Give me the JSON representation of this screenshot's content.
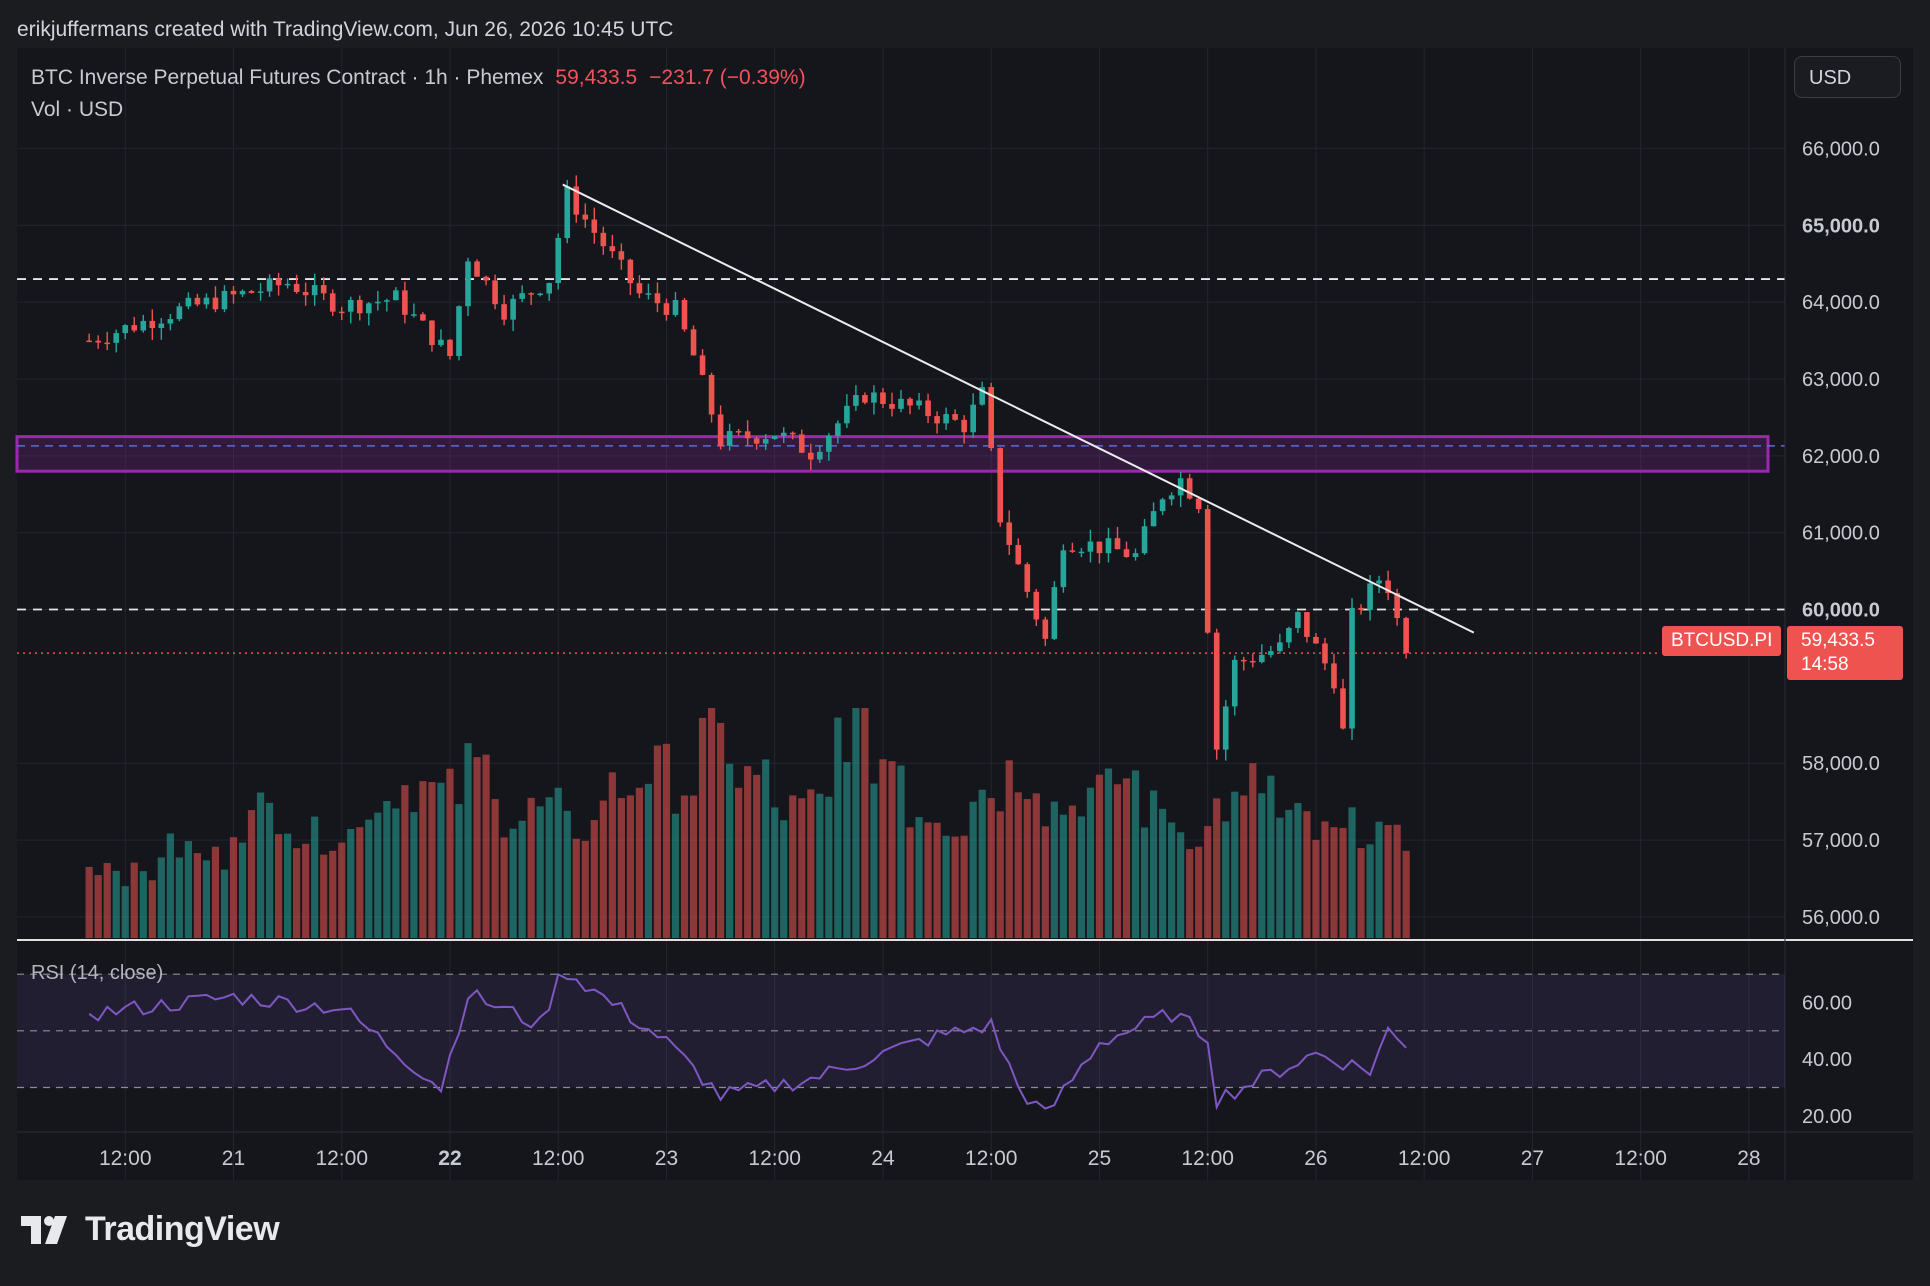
{
  "header": {
    "credit": "erikjuffermans created with TradingView.com, Jun 26, 2026 10:45 UTC"
  },
  "legend": {
    "symbol": "BTC Inverse Perpetual Futures Contract · 1h · Phemex",
    "price": "59,433.5",
    "change": "−231.7 (−0.39%)",
    "volume": "Vol · USD"
  },
  "currency_button": "USD",
  "price_tag": {
    "symbol": "BTCUSD.PI",
    "price": "59,433.5",
    "countdown": "14:58"
  },
  "rsi_label": "RSI (14, close)",
  "brand": "TradingView",
  "colors": {
    "up": "#26a69a",
    "down": "#ef5350",
    "zone": "#9c27b0",
    "rsi": "#7e57c2",
    "background": "#15161c"
  },
  "chart_data": [
    {
      "type": "candlestick",
      "y_axis_ticks": [
        "66,000.0",
        "65,000.0",
        "64,000.0",
        "63,000.0",
        "62,000.0",
        "61,000.0",
        "60,000.0",
        "58,000.0",
        "57,000.0",
        "56,000.0"
      ],
      "y_axis_ticks_bold": [
        "65,000.0",
        "60,000.0"
      ],
      "x_axis_ticks": [
        "12:00",
        "21",
        "12:00",
        "22",
        "12:00",
        "23",
        "12:00",
        "24",
        "12:00",
        "25",
        "12:00",
        "26",
        "12:00",
        "27",
        "12:00",
        "28"
      ],
      "x_axis_ticks_bold": [
        "22"
      ],
      "ylim": [
        55700,
        66500
      ],
      "last_price": 59433.5,
      "horizontal_levels": [
        64300,
        60000
      ],
      "support_zone": {
        "low": 61800,
        "high": 62250,
        "mid": 62130
      },
      "trendline": {
        "from": {
          "time": "Jun 22 12:30",
          "price": 65530
        },
        "to": {
          "time": "Jun 26 17:30",
          "price": 59700
        }
      },
      "close_path": [
        {
          "time": "Jun 20 08:00",
          "close": 63500
        },
        {
          "time": "Jun 20 18:00",
          "close": 63900
        },
        {
          "time": "Jun 21 06:00",
          "close": 64250
        },
        {
          "time": "Jun 21 12:00",
          "close": 63950
        },
        {
          "time": "Jun 21 18:00",
          "close": 64050
        },
        {
          "time": "Jun 22 00:00",
          "close": 63300
        },
        {
          "time": "Jun 22 02:00",
          "close": 64600
        },
        {
          "time": "Jun 22 06:00",
          "close": 63900
        },
        {
          "time": "Jun 22 11:00",
          "close": 64300
        },
        {
          "time": "Jun 22 13:00",
          "close": 65400
        },
        {
          "time": "Jun 22 21:00",
          "close": 64100
        },
        {
          "time": "Jun 23 01:00",
          "close": 63900
        },
        {
          "time": "Jun 23 03:00",
          "close": 63300
        },
        {
          "time": "Jun 23 06:00",
          "close": 62200
        },
        {
          "time": "Jun 23 12:00",
          "close": 62300
        },
        {
          "time": "Jun 23 16:00",
          "close": 62050
        },
        {
          "time": "Jun 23 22:00",
          "close": 62800
        },
        {
          "time": "Jun 24 04:00",
          "close": 62600
        },
        {
          "time": "Jun 24 09:00",
          "close": 62400
        },
        {
          "time": "Jun 24 11:00",
          "close": 62800
        },
        {
          "time": "Jun 24 13:00",
          "close": 61200
        },
        {
          "time": "Jun 24 18:00",
          "close": 59600
        },
        {
          "time": "Jun 24 20:00",
          "close": 60900
        },
        {
          "time": "Jun 25 01:00",
          "close": 60800
        },
        {
          "time": "Jun 25 04:00",
          "close": 60700
        },
        {
          "time": "Jun 25 07:00",
          "close": 61500
        },
        {
          "time": "Jun 25 09:00",
          "close": 61700
        },
        {
          "time": "Jun 25 11:00",
          "close": 61400
        },
        {
          "time": "Jun 25 13:00",
          "close": 58200
        },
        {
          "time": "Jun 25 15:00",
          "close": 59300
        },
        {
          "time": "Jun 25 20:00",
          "close": 59500
        },
        {
          "time": "Jun 25 22:00",
          "close": 59900
        },
        {
          "time": "Jun 26 02:00",
          "close": 59100
        },
        {
          "time": "Jun 26 03:00",
          "close": 58400
        },
        {
          "time": "Jun 26 04:00",
          "close": 59900
        },
        {
          "time": "Jun 26 07:00",
          "close": 60400
        },
        {
          "time": "Jun 26 08:00",
          "close": 60300
        },
        {
          "time": "Jun 26 10:00",
          "close": 59433.5
        }
      ],
      "volume_series": {
        "name": "Vol · USD",
        "relative_level": [
          0.35,
          0.3,
          0.42,
          0.38,
          0.55,
          0.6,
          0.48,
          0.5,
          0.65,
          0.72,
          0.68,
          0.8,
          0.55,
          0.6,
          0.52,
          0.7,
          0.78,
          0.72,
          0.92,
          0.75,
          0.6,
          0.62,
          1.0,
          0.85,
          0.6,
          0.55,
          0.7,
          0.78,
          0.62,
          0.68,
          0.75,
          0.6,
          0.5,
          0.62,
          0.72,
          0.55,
          0.48,
          0.52,
          0.45
        ]
      }
    },
    {
      "type": "line",
      "series": [
        {
          "name": "RSI (14, close)"
        }
      ],
      "y_axis_ticks": [
        "60.00",
        "40.00",
        "20.00"
      ],
      "ylim": [
        15,
        75
      ],
      "band": [
        30,
        70
      ],
      "midline": 50,
      "points": [
        {
          "time": "Jun 20 08:00",
          "rsi": 56
        },
        {
          "time": "Jun 21 00:00",
          "rsi": 62
        },
        {
          "time": "Jun 21 12:00",
          "rsi": 58
        },
        {
          "time": "Jun 21 23:00",
          "rsi": 30
        },
        {
          "time": "Jun 22 02:00",
          "rsi": 63
        },
        {
          "time": "Jun 22 10:00",
          "rsi": 52
        },
        {
          "time": "Jun 22 12:30",
          "rsi": 72
        },
        {
          "time": "Jun 23 00:00",
          "rsi": 46
        },
        {
          "time": "Jun 23 06:00",
          "rsi": 27
        },
        {
          "time": "Jun 23 16:00",
          "rsi": 33
        },
        {
          "time": "Jun 24 00:00",
          "rsi": 42
        },
        {
          "time": "Jun 24 06:00",
          "rsi": 48
        },
        {
          "time": "Jun 24 12:00",
          "rsi": 52
        },
        {
          "time": "Jun 24 15:00",
          "rsi": 30
        },
        {
          "time": "Jun 24 18:00",
          "rsi": 20
        },
        {
          "time": "Jun 25 00:00",
          "rsi": 46
        },
        {
          "time": "Jun 25 08:00",
          "rsi": 56
        },
        {
          "time": "Jun 25 12:00",
          "rsi": 48
        },
        {
          "time": "Jun 25 13:00",
          "rsi": 26
        },
        {
          "time": "Jun 26 00:00",
          "rsi": 42
        },
        {
          "time": "Jun 26 06:00",
          "rsi": 36
        },
        {
          "time": "Jun 26 08:00",
          "rsi": 50
        },
        {
          "time": "Jun 26 10:00",
          "rsi": 44
        }
      ]
    }
  ]
}
